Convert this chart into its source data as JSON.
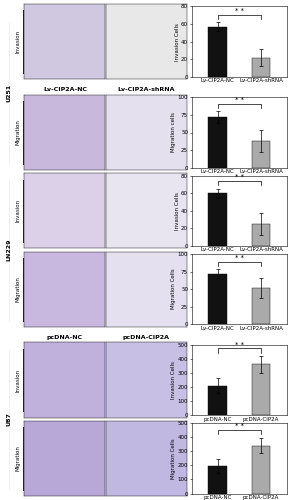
{
  "charts": [
    {
      "ylabel": "Invasion Cells",
      "ylim": [
        0,
        80
      ],
      "yticks": [
        0,
        20,
        40,
        60,
        80
      ],
      "bar1_val": 57,
      "bar1_err": 5,
      "bar2_val": 22,
      "bar2_err": 10,
      "labels": [
        "Lv-CIP2A-NC",
        "Lv-CIP2A-shRNA"
      ],
      "colors": [
        "#111111",
        "#aaaaaa"
      ]
    },
    {
      "ylabel": "Migration cells",
      "ylim": [
        0,
        100
      ],
      "yticks": [
        0,
        25,
        50,
        75,
        100
      ],
      "bar1_val": 72,
      "bar1_err": 8,
      "bar2_val": 38,
      "bar2_err": 15,
      "labels": [
        "Lv-CIP2A-NC",
        "Lv-CIP2A-shRNA"
      ],
      "colors": [
        "#111111",
        "#aaaaaa"
      ]
    },
    {
      "ylabel": "Invasion Cells",
      "ylim": [
        0,
        80
      ],
      "yticks": [
        0,
        20,
        40,
        60,
        80
      ],
      "bar1_val": 60,
      "bar1_err": 5,
      "bar2_val": 25,
      "bar2_err": 12,
      "labels": [
        "Lv-CIP2A-NC",
        "Lv-CIP2A-shRNA"
      ],
      "colors": [
        "#111111",
        "#aaaaaa"
      ]
    },
    {
      "ylabel": "Migration Cells",
      "ylim": [
        0,
        100
      ],
      "yticks": [
        0,
        25,
        50,
        75,
        100
      ],
      "bar1_val": 72,
      "bar1_err": 6,
      "bar2_val": 52,
      "bar2_err": 14,
      "labels": [
        "Lv-CIP2A-NC",
        "Lv-CIP2A-shRNA"
      ],
      "colors": [
        "#111111",
        "#aaaaaa"
      ]
    },
    {
      "ylabel": "Invasion Cells",
      "ylim": [
        0,
        500
      ],
      "yticks": [
        0,
        100,
        200,
        300,
        400,
        500
      ],
      "bar1_val": 210,
      "bar1_err": 55,
      "bar2_val": 360,
      "bar2_err": 60,
      "labels": [
        "pcDNA-NC",
        "pcDNA-CIP2A"
      ],
      "colors": [
        "#111111",
        "#aaaaaa"
      ]
    },
    {
      "ylabel": "Migration Cells",
      "ylim": [
        0,
        500
      ],
      "yticks": [
        0,
        100,
        200,
        300,
        400,
        500
      ],
      "bar1_val": 195,
      "bar1_err": 50,
      "bar2_val": 340,
      "bar2_err": 55,
      "labels": [
        "pcDNA-NC",
        "pcDNA-CIP2A"
      ],
      "colors": [
        "#111111",
        "#aaaaaa"
      ]
    }
  ],
  "row_labels": [
    [
      "Lv-CIP2A-NC",
      "Lv-CIP2A-shRNA"
    ],
    [
      "Lv-CIP2A-NC",
      "Lv-CIP2A-shRNA"
    ],
    [
      "Lv-CIP2A-NC",
      "Lv-CIP2A-shRNA"
    ],
    [
      "Lv-CIP2A-NC",
      "Lv-CIP2A-shRNA"
    ],
    [
      "pcDNA-NC",
      "pcDNA-CIP2A"
    ],
    [
      "pcDNA-NC",
      "pcDNA-CIP2A"
    ]
  ],
  "col_headers": [
    "Lv-CIP2A-NC",
    "Lv-CIP2A-shRNA"
  ],
  "col_headers2": [
    "pcDNA-NC",
    "pcDNA-CIP2A"
  ],
  "side_labels": [
    {
      "text": "U251",
      "rows": [
        0,
        1
      ]
    },
    {
      "text": "LN229",
      "rows": [
        2,
        3
      ]
    },
    {
      "text": "U87",
      "rows": [
        4,
        5
      ]
    }
  ],
  "row_labels_left": [
    "Invasion",
    "Migration",
    "Invasion",
    "Migration",
    "Invasion",
    "Migration"
  ],
  "sig_text": "* *",
  "bar_width": 0.42,
  "figure_bg": "#ffffff",
  "tick_fontsize": 4.0,
  "label_fontsize": 4.0,
  "sig_fontsize": 5.0,
  "img_colors": [
    [
      "#d0c8e0",
      "#e8e8e8"
    ],
    [
      "#c8b8dc",
      "#e4e0ee"
    ],
    [
      "#dcd0e8",
      "#e8e4f0"
    ],
    [
      "#c8b8e0",
      "#e4e0f0"
    ],
    [
      "#c0b0dc",
      "#c8c0e4"
    ],
    [
      "#b8a8d8",
      "#c0b8e0"
    ]
  ]
}
